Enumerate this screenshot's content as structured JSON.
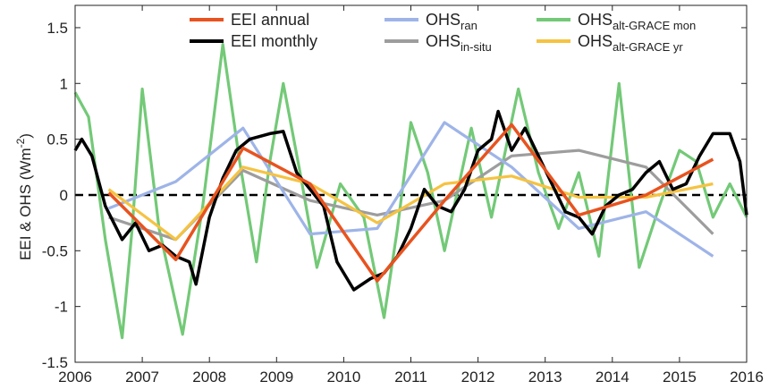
{
  "chart_data": {
    "type": "line",
    "ylabel": {
      "text": "EEI & OHS (Wm",
      "sup": "-2",
      "end": ")"
    },
    "xlim": [
      2006,
      2016
    ],
    "ylim": [
      -1.5,
      1.7
    ],
    "xticks": [
      2006,
      2007,
      2008,
      2009,
      2010,
      2011,
      2012,
      2013,
      2014,
      2015,
      2016
    ],
    "yticks": [
      -1.5,
      -1,
      -0.5,
      0,
      0.5,
      1,
      1.5
    ],
    "hline": 0,
    "grid": false,
    "series": [
      {
        "name": "EEI annual",
        "color": "#e8531f",
        "x": [
          2006.5,
          2007.5,
          2008.5,
          2009.5,
          2010.5,
          2011.5,
          2012.5,
          2013.5,
          2014.5,
          2015.5
        ],
        "values": [
          0.02,
          -0.58,
          0.42,
          0.1,
          -0.77,
          -0.05,
          0.63,
          -0.18,
          0.0,
          0.32
        ]
      },
      {
        "name": "EEI monthly",
        "color": "#000000",
        "x": [
          2006.0,
          2006.1,
          2006.25,
          2006.45,
          2006.7,
          2006.9,
          2007.1,
          2007.3,
          2007.5,
          2007.7,
          2007.8,
          2008.0,
          2008.2,
          2008.4,
          2008.6,
          2008.9,
          2009.1,
          2009.3,
          2009.5,
          2009.7,
          2009.9,
          2010.15,
          2010.4,
          2010.6,
          2010.8,
          2011.0,
          2011.2,
          2011.4,
          2011.6,
          2011.8,
          2012.0,
          2012.2,
          2012.3,
          2012.5,
          2012.7,
          2012.9,
          2013.1,
          2013.3,
          2013.5,
          2013.7,
          2013.9,
          2014.1,
          2014.3,
          2014.5,
          2014.7,
          2014.9,
          2015.1,
          2015.3,
          2015.5,
          2015.75,
          2015.9,
          2016.0
        ],
        "values": [
          0.4,
          0.5,
          0.35,
          -0.1,
          -0.4,
          -0.25,
          -0.5,
          -0.45,
          -0.55,
          -0.6,
          -0.8,
          -0.2,
          0.15,
          0.4,
          0.5,
          0.55,
          0.57,
          0.2,
          0.05,
          -0.1,
          -0.6,
          -0.85,
          -0.75,
          -0.7,
          -0.55,
          -0.3,
          0.05,
          -0.1,
          -0.15,
          0.05,
          0.4,
          0.5,
          0.75,
          0.4,
          0.6,
          0.35,
          0.1,
          -0.15,
          -0.2,
          -0.35,
          -0.1,
          0.0,
          0.05,
          0.2,
          0.3,
          0.05,
          0.1,
          0.35,
          0.55,
          0.55,
          0.3,
          -0.18
        ]
      },
      {
        "name": "OHS",
        "sub": "ran",
        "color": "#9eb4e8",
        "x": [
          2006.5,
          2007.5,
          2008.5,
          2009.5,
          2010.5,
          2011.5,
          2012.5,
          2013.5,
          2014.5,
          2015.5
        ],
        "values": [
          -0.12,
          0.12,
          0.6,
          -0.35,
          -0.3,
          0.65,
          0.25,
          -0.3,
          -0.15,
          -0.55
        ]
      },
      {
        "name": "OHS",
        "sub": "in-situ",
        "color": "#9d9d9d",
        "x": [
          2006.5,
          2007.5,
          2008.5,
          2009.5,
          2010.5,
          2011.5,
          2012.5,
          2013.5,
          2014.5,
          2015.5
        ],
        "values": [
          -0.2,
          -0.4,
          0.22,
          -0.05,
          -0.18,
          -0.05,
          0.35,
          0.4,
          0.25,
          -0.35
        ]
      },
      {
        "name": "OHS",
        "sub": "alt-GRACE mon",
        "color": "#73c977",
        "x": [
          2006.0,
          2006.2,
          2006.45,
          2006.7,
          2006.85,
          2007.0,
          2007.25,
          2007.6,
          2007.9,
          2008.2,
          2008.45,
          2008.7,
          2008.9,
          2009.1,
          2009.35,
          2009.6,
          2009.95,
          2010.3,
          2010.6,
          2010.8,
          2011.0,
          2011.25,
          2011.5,
          2011.9,
          2012.2,
          2012.6,
          2012.9,
          2013.2,
          2013.5,
          2013.8,
          2014.1,
          2014.4,
          2014.7,
          2015.0,
          2015.25,
          2015.5,
          2015.75,
          2016.0
        ],
        "values": [
          0.92,
          0.7,
          -0.4,
          -1.28,
          -0.3,
          0.95,
          -0.3,
          -1.25,
          -0.1,
          1.35,
          0.3,
          -0.6,
          0.3,
          1.0,
          0.2,
          -0.65,
          0.1,
          -0.2,
          -1.1,
          -0.3,
          0.65,
          0.2,
          -0.5,
          0.6,
          -0.2,
          0.95,
          0.2,
          -0.3,
          0.2,
          -0.55,
          1.0,
          -0.65,
          -0.1,
          0.4,
          0.3,
          -0.2,
          0.1,
          -0.2
        ]
      },
      {
        "name": "OHS",
        "sub": "alt-GRACE yr",
        "color": "#f5c342",
        "x": [
          2006.5,
          2007.5,
          2008.5,
          2009.5,
          2010.5,
          2011.5,
          2012.5,
          2013.5,
          2014.5,
          2015.5
        ],
        "values": [
          0.05,
          -0.4,
          0.25,
          0.1,
          -0.25,
          0.1,
          0.17,
          -0.02,
          -0.02,
          0.1
        ]
      }
    ]
  }
}
